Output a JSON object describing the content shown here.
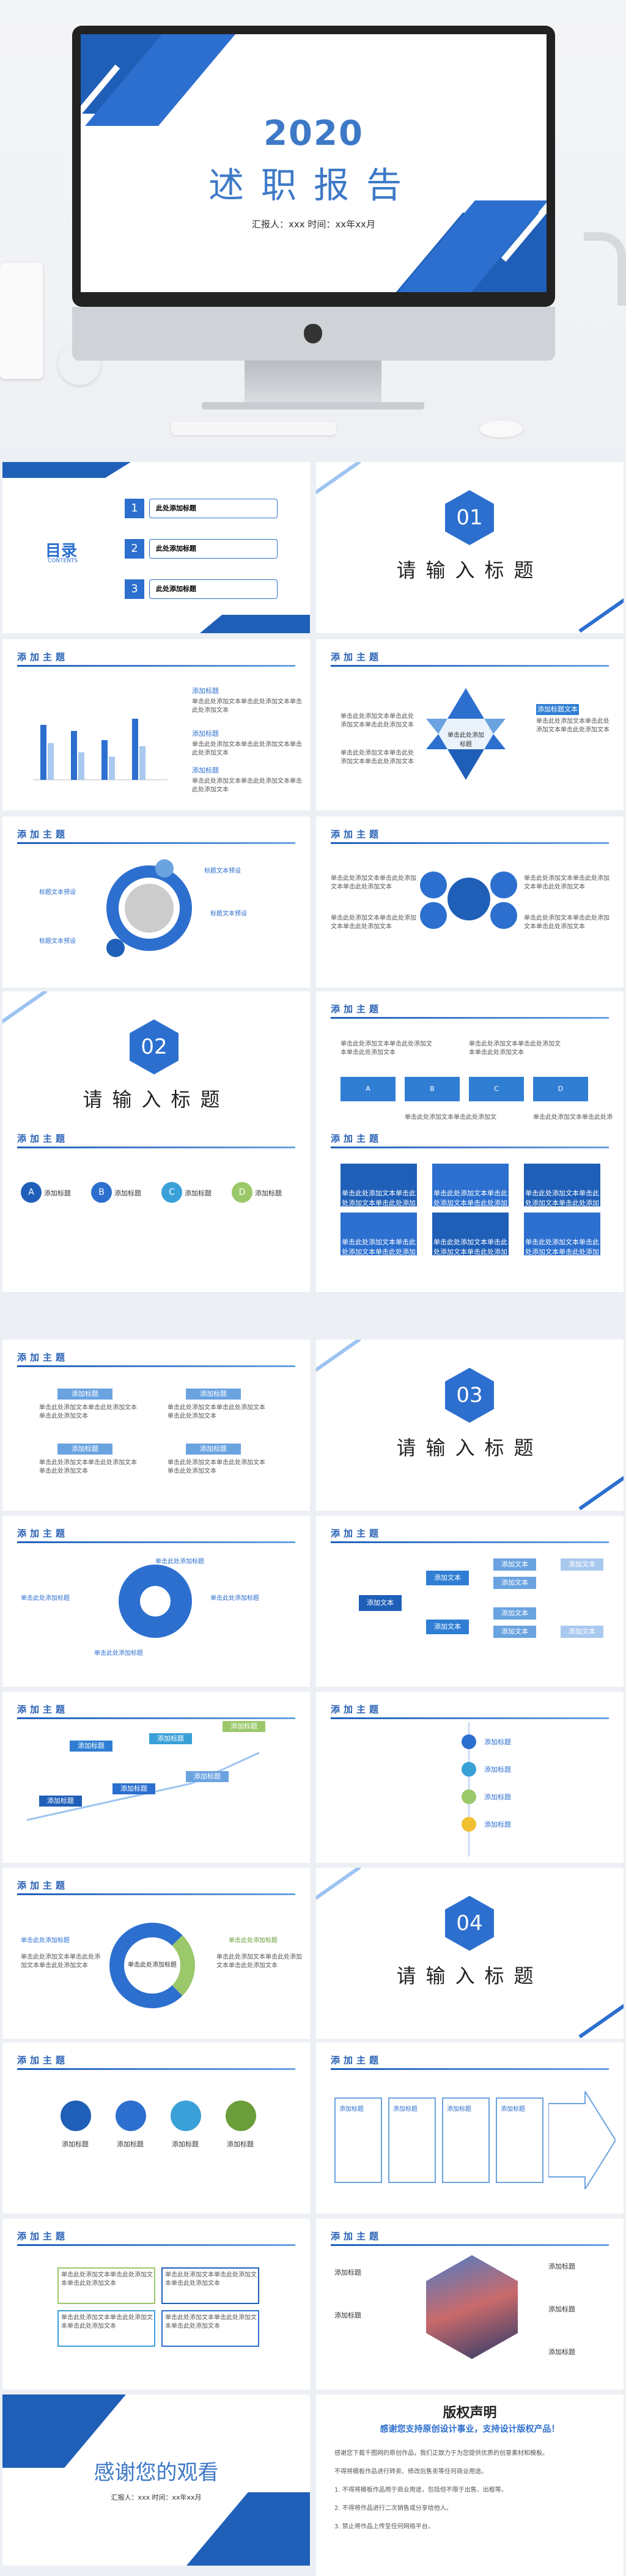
{
  "hero": {
    "year": "2020",
    "title": "述职报告",
    "reporter": "汇报人：xxx  时间：xx年xx月"
  },
  "toc": {
    "title": "目录",
    "subtitle": "CONTENTS",
    "items": [
      {
        "num": "1",
        "label": "此处添加标题"
      },
      {
        "num": "2",
        "label": "此处添加标题"
      },
      {
        "num": "3",
        "label": "此处添加标题"
      }
    ]
  },
  "sections": [
    {
      "num": "01",
      "title": "请输入标题"
    },
    {
      "num": "02",
      "title": "请输入标题"
    },
    {
      "num": "03",
      "title": "请输入标题"
    },
    {
      "num": "04",
      "title": "请输入标题"
    }
  ],
  "header": "添加主题",
  "labels": {
    "add_title": "添加标题",
    "click_title": "此处添加标题",
    "label_text": "标题文本预设",
    "click_add": "单击此处添加标题",
    "body": "单击此处添加文本单击此处添加文本单击此处添加文本",
    "title_text": "添加标题文本",
    "text": "添加文本",
    "center": "单击此处添加标题",
    "stage": "添加标题"
  },
  "abcd": [
    "A",
    "B",
    "C",
    "D"
  ],
  "thanks": {
    "title": "感谢您的观看",
    "reporter": "汇报人：xxx  时间：xx年xx月"
  },
  "copyright": {
    "title": "版权声明",
    "subtitle": "感谢您支持原创设计事业，支持设计版权产品！",
    "lines": [
      "感谢您下载千图网的原创作品，我们正致力于为您提供优质的创意素材和模板。",
      "不得将模板作品进行转卖、修改后售卖等任何商业用途。",
      "1. 不得将模板作品用于商业用途，包括但不限于出售、出租等。",
      "2. 不得将作品进行二次销售或分享给他人。",
      "3. 禁止将作品上传至任何网络平台。"
    ]
  }
}
